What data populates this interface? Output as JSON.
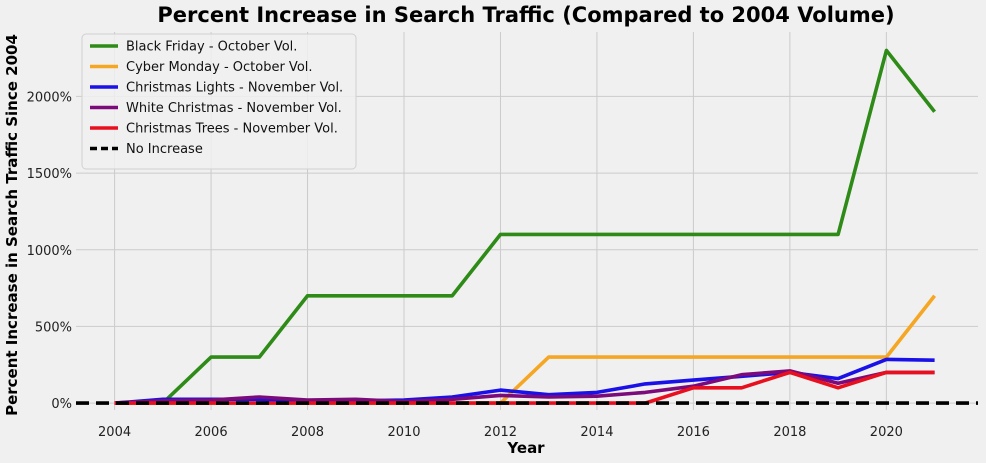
{
  "chart_data": {
    "type": "line",
    "title": "Percent Increase in Search Traffic (Compared to 2004 Volume)",
    "xlabel": "Year",
    "ylabel": "Percent Increase in Search Traffic Since 2004",
    "xlim": [
      2003.2,
      2021.9
    ],
    "ylim": [
      -45,
      2420
    ],
    "x_ticks": [
      2004,
      2006,
      2008,
      2010,
      2012,
      2014,
      2016,
      2018,
      2020
    ],
    "y_ticks": [
      0,
      500,
      1000,
      1500,
      2000
    ],
    "y_tick_labels": [
      "0%",
      "500%",
      "1000%",
      "1500%",
      "2000%"
    ],
    "grid": true,
    "legend_position": "top-left",
    "x": [
      2004,
      2005,
      2006,
      2007,
      2008,
      2009,
      2010,
      2011,
      2012,
      2013,
      2014,
      2015,
      2016,
      2017,
      2018,
      2019,
      2020,
      2021
    ],
    "series": [
      {
        "name": "Black Friday - October Vol.",
        "color": "#2e8b17",
        "values": [
          0,
          0,
          300,
          300,
          700,
          700,
          700,
          700,
          1100,
          1100,
          1100,
          1100,
          1100,
          1100,
          1100,
          1100,
          2300,
          1900
        ]
      },
      {
        "name": "Cyber Monday - October Vol.",
        "color": "#f5a623",
        "values": [
          0,
          0,
          0,
          0,
          0,
          0,
          0,
          0,
          0,
          300,
          300,
          300,
          300,
          300,
          300,
          300,
          300,
          700
        ]
      },
      {
        "name": "Christmas Lights - November Vol.",
        "color": "#1a10e8",
        "values": [
          0,
          25,
          25,
          25,
          10,
          15,
          20,
          40,
          85,
          55,
          70,
          125,
          150,
          175,
          200,
          160,
          285,
          280
        ]
      },
      {
        "name": "White Christmas - November Vol.",
        "color": "#7b0a7b",
        "values": [
          0,
          15,
          20,
          40,
          20,
          25,
          10,
          25,
          50,
          40,
          45,
          70,
          110,
          185,
          210,
          130,
          200,
          200
        ]
      },
      {
        "name": "Christmas Trees - November Vol.",
        "color": "#e8101e",
        "values": [
          0,
          0,
          0,
          0,
          0,
          0,
          0,
          0,
          0,
          0,
          0,
          0,
          100,
          100,
          200,
          100,
          200,
          200
        ]
      },
      {
        "name": "No Increase",
        "color": "#000000",
        "dashed": true,
        "values": [
          0,
          0,
          0,
          0,
          0,
          0,
          0,
          0,
          0,
          0,
          0,
          0,
          0,
          0,
          0,
          0,
          0,
          0
        ]
      }
    ]
  }
}
